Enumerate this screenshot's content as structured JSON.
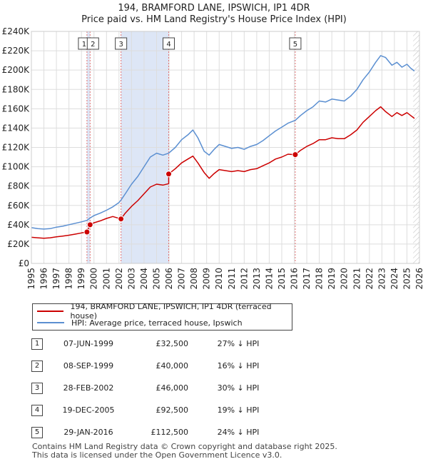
{
  "title_line1": "194, BRAMFORD LANE, IPSWICH, IP1 4DR",
  "title_line2": "Price paid vs. HM Land Registry's House Price Index (HPI)",
  "colors": {
    "price": "#cc0000",
    "hpi": "#5b8fd1",
    "shade": "#dde6f6",
    "vline": "#e07070",
    "grid": "#dddddd"
  },
  "chart_data": {
    "type": "line",
    "xlim": [
      1995,
      2026
    ],
    "ylim": [
      0,
      240000
    ],
    "y_ticks": [
      0,
      20000,
      40000,
      60000,
      80000,
      100000,
      120000,
      140000,
      160000,
      180000,
      200000,
      220000,
      240000
    ],
    "y_tick_labels": [
      "£0",
      "£20K",
      "£40K",
      "£60K",
      "£80K",
      "£100K",
      "£120K",
      "£140K",
      "£160K",
      "£180K",
      "£200K",
      "£220K",
      "£240K"
    ],
    "x_tick_labels": [
      "1995",
      "1996",
      "1997",
      "1998",
      "1999",
      "2000",
      "2001",
      "2002",
      "2003",
      "2004",
      "2005",
      "2006",
      "2007",
      "2008",
      "2009",
      "2010",
      "2011",
      "2012",
      "2013",
      "2014",
      "2015",
      "2016",
      "2017",
      "2018",
      "2019",
      "2020",
      "2021",
      "2022",
      "2023",
      "2024",
      "2025",
      "2026"
    ],
    "series": [
      {
        "name": "HPI: Average price, terraced house, Ipswich",
        "x": [
          1995,
          1995.5,
          1996,
          1996.5,
          1997,
          1997.5,
          1998,
          1998.5,
          1999,
          1999.44,
          1999.69,
          2000,
          2000.5,
          2001,
          2001.5,
          2002,
          2002.16,
          2002.5,
          2003,
          2003.5,
          2004,
          2004.5,
          2005,
          2005.5,
          2005.97,
          2006.5,
          2007,
          2007.5,
          2007.9,
          2008.3,
          2008.8,
          2009.2,
          2009.6,
          2010,
          2010.5,
          2011,
          2011.5,
          2012,
          2012.5,
          2013,
          2013.5,
          2014,
          2014.5,
          2015,
          2015.5,
          2016.08,
          2016.5,
          2017,
          2017.5,
          2018,
          2018.5,
          2019,
          2019.5,
          2020,
          2020.5,
          2021,
          2021.5,
          2022,
          2022.5,
          2022.9,
          2023.3,
          2023.8,
          2024.2,
          2024.6,
          2025,
          2025.3,
          2025.6
        ],
        "values": [
          37000,
          36000,
          35500,
          36000,
          37500,
          38500,
          40000,
          41500,
          43000,
          44500,
          47000,
          49500,
          52000,
          55000,
          58500,
          63000,
          65500,
          72000,
          82000,
          90000,
          100000,
          110000,
          114000,
          112000,
          114000,
          120000,
          128000,
          133000,
          138000,
          130000,
          116000,
          112000,
          118000,
          123000,
          121000,
          119000,
          120000,
          118000,
          121000,
          123000,
          127000,
          132000,
          137000,
          141000,
          145000,
          148000,
          153000,
          158000,
          162000,
          168000,
          167000,
          170000,
          169000,
          168000,
          173000,
          180000,
          190000,
          198000,
          208000,
          215000,
          213000,
          205000,
          208000,
          203000,
          206000,
          202000,
          199000
        ]
      },
      {
        "name": "194, BRAMFORD LANE, IPSWICH, IP1 4DR (terraced house)",
        "x": [
          1995,
          1995.5,
          1996,
          1996.5,
          1997,
          1997.5,
          1998,
          1998.5,
          1999,
          1999.44,
          1999.44,
          1999.69,
          2000,
          2000.5,
          2001,
          2001.5,
          2002.16,
          2002.16,
          2002.5,
          2003,
          2003.5,
          2004,
          2004.5,
          2005,
          2005.5,
          2005.97,
          2005.97,
          2006.5,
          2007,
          2007.5,
          2007.9,
          2008.3,
          2008.8,
          2009.2,
          2009.6,
          2010,
          2010.5,
          2011,
          2011.5,
          2012,
          2012.5,
          2013,
          2013.5,
          2014,
          2014.5,
          2015,
          2015.5,
          2016.08,
          2016.08,
          2016.5,
          2017,
          2017.5,
          2018,
          2018.5,
          2019,
          2019.5,
          2020,
          2020.5,
          2021,
          2021.5,
          2022,
          2022.5,
          2022.9,
          2023.3,
          2023.8,
          2024.2,
          2024.6,
          2025,
          2025.3,
          2025.6
        ],
        "values": [
          27000,
          26500,
          26000,
          26500,
          27500,
          28300,
          29200,
          30300,
          31500,
          32500,
          32500,
          40000,
          42000,
          44000,
          46500,
          48500,
          46000,
          46000,
          52000,
          59000,
          65000,
          72000,
          79000,
          82000,
          81000,
          82500,
          92500,
          98000,
          104000,
          108000,
          111000,
          104000,
          94000,
          88000,
          93000,
          97000,
          96000,
          95000,
          96000,
          95000,
          97000,
          98000,
          101000,
          104000,
          108000,
          110000,
          113000,
          112500,
          112500,
          117000,
          121000,
          124000,
          128000,
          128000,
          130000,
          129000,
          129000,
          133000,
          138000,
          146000,
          152000,
          158000,
          162000,
          157000,
          152000,
          156000,
          153000,
          156000,
          153000,
          150000
        ]
      }
    ],
    "sales": [
      {
        "num": "1",
        "x": 1999.44,
        "price": 32500
      },
      {
        "num": "2",
        "x": 1999.69,
        "price": 40000
      },
      {
        "num": "3",
        "x": 2002.16,
        "price": 46000
      },
      {
        "num": "4",
        "x": 2005.97,
        "price": 92500
      },
      {
        "num": "5",
        "x": 2016.08,
        "price": 112500
      }
    ],
    "shaded_ranges": [
      [
        1999.44,
        1999.69
      ],
      [
        2002.16,
        2005.97
      ]
    ],
    "hatch_from": 2025.5
  },
  "legend": {
    "price_label": "194, BRAMFORD LANE, IPSWICH, IP1 4DR (terraced house)",
    "hpi_label": "HPI: Average price, terraced house, Ipswich"
  },
  "table": [
    {
      "num": "1",
      "date": "07-JUN-1999",
      "price": "£32,500",
      "hpi": "27% ↓ HPI"
    },
    {
      "num": "2",
      "date": "08-SEP-1999",
      "price": "£40,000",
      "hpi": "16% ↓ HPI"
    },
    {
      "num": "3",
      "date": "28-FEB-2002",
      "price": "£46,000",
      "hpi": "30% ↓ HPI"
    },
    {
      "num": "4",
      "date": "19-DEC-2005",
      "price": "£92,500",
      "hpi": "19% ↓ HPI"
    },
    {
      "num": "5",
      "date": "29-JAN-2016",
      "price": "£112,500",
      "hpi": "24% ↓ HPI"
    }
  ],
  "footer_line1": "Contains HM Land Registry data © Crown copyright and database right 2025.",
  "footer_line2": "This data is licensed under the Open Government Licence v3.0."
}
